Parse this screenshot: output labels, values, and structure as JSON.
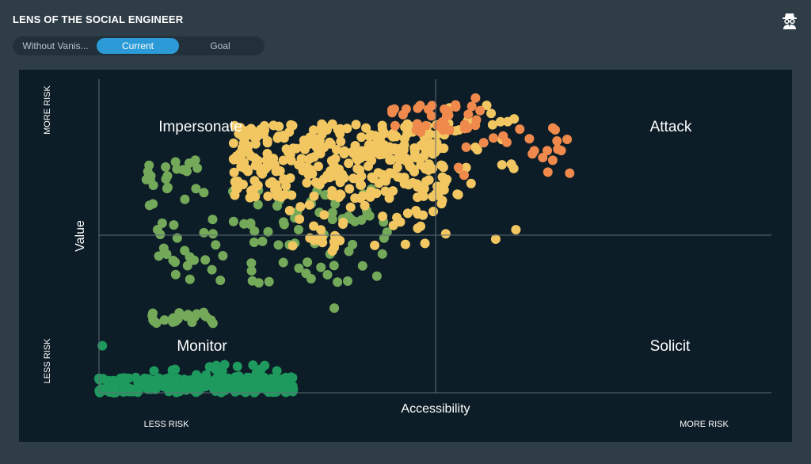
{
  "app": {
    "title": "LENS OF THE SOCIAL ENGINEER",
    "icon": "spy-icon"
  },
  "tabs": [
    {
      "label": "Without Vanis...",
      "active": false
    },
    {
      "label": "Current",
      "active": true
    },
    {
      "label": "Goal",
      "active": false
    }
  ],
  "chart_data": {
    "type": "scatter",
    "xlabel": "Accessibility",
    "ylabel": "Value",
    "x_axis_ends": {
      "low": "LESS RISK",
      "high": "MORE RISK"
    },
    "y_axis_ends": {
      "low": "LESS RISK",
      "high": "MORE RISK"
    },
    "xlim": [
      0,
      100
    ],
    "ylim": [
      0,
      100
    ],
    "quadrant_dividers": {
      "x": 50,
      "y": 50
    },
    "quadrants": {
      "top_left": "Impersonate",
      "top_right": "Attack",
      "bottom_left": "Monitor",
      "bottom_right": "Solicit"
    },
    "colors": {
      "dark_green": "#1f9a5e",
      "green": "#74a95a",
      "yellow": "#f2c762",
      "orange": "#ef8a4c"
    },
    "clusters": [
      {
        "color": "dark_green",
        "count": 230,
        "x": [
          0,
          29
        ],
        "y": [
          0,
          5
        ],
        "note": "dense band along the bottom"
      },
      {
        "color": "dark_green",
        "count": 25,
        "x": [
          3,
          28
        ],
        "y": [
          3,
          10
        ]
      },
      {
        "color": "green",
        "count": 22,
        "x": [
          7,
          17
        ],
        "y": [
          22,
          26
        ]
      },
      {
        "color": "green",
        "count": 95,
        "x": [
          7,
          43
        ],
        "y": [
          35,
          65
        ]
      },
      {
        "color": "green",
        "count": 20,
        "x": [
          7,
          15
        ],
        "y": [
          65,
          75
        ]
      },
      {
        "color": "yellow",
        "count": 330,
        "x": [
          20,
          52
        ],
        "y": [
          62,
          86
        ]
      },
      {
        "color": "yellow",
        "count": 40,
        "x": [
          28,
          52
        ],
        "y": [
          45,
          62
        ]
      },
      {
        "color": "yellow",
        "count": 25,
        "x": [
          50,
          62
        ],
        "y": [
          62,
          92
        ]
      },
      {
        "color": "orange",
        "count": 35,
        "x": [
          41,
          58
        ],
        "y": [
          82,
          92
        ]
      },
      {
        "color": "orange",
        "count": 20,
        "x": [
          52,
          70
        ],
        "y": [
          68,
          86
        ]
      }
    ],
    "extra_points": [
      {
        "x": 0.5,
        "y": 15,
        "color": "dark_green"
      },
      {
        "x": 59,
        "y": 49,
        "color": "yellow"
      },
      {
        "x": 62,
        "y": 52,
        "color": "yellow"
      },
      {
        "x": 70,
        "y": 70,
        "color": "orange"
      },
      {
        "x": 66,
        "y": 75,
        "color": "orange"
      },
      {
        "x": 64,
        "y": 81,
        "color": "orange"
      },
      {
        "x": 56,
        "y": 94,
        "color": "orange"
      },
      {
        "x": 41,
        "y": 47,
        "color": "yellow"
      },
      {
        "x": 35,
        "y": 27,
        "color": "green"
      },
      {
        "x": 33,
        "y": 40,
        "color": "green"
      }
    ]
  }
}
